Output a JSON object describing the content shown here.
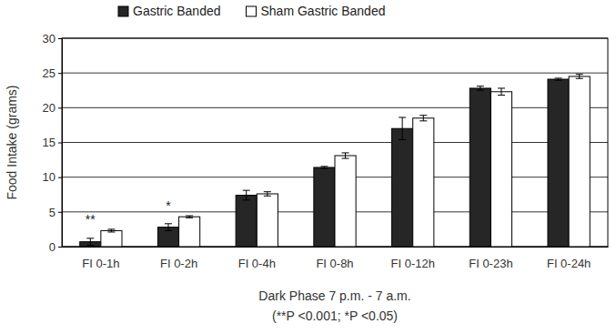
{
  "chart_data": {
    "type": "bar",
    "ylabel": "Food Intake (grams)",
    "xlabel": [
      "Dark Phase 7 p.m. - 7 a.m.",
      "(**P <0.001; *P <0.05)"
    ],
    "categories": [
      "FI 0-1h",
      "FI 0-2h",
      "FI 0-4h",
      "FI 0-8h",
      "FI 0-12h",
      "FI 0-23h",
      "FI 0-24h"
    ],
    "series": [
      {
        "name": "Gastric Banded",
        "color": "#262626",
        "values": [
          0.7,
          2.8,
          7.4,
          11.4,
          17.0,
          22.8,
          24.1
        ],
        "errors": [
          0.5,
          0.5,
          0.7,
          0.15,
          1.6,
          0.3,
          0.15
        ]
      },
      {
        "name": "Sham Gastric Banded",
        "color": "#ffffff",
        "values": [
          2.3,
          4.3,
          7.6,
          13.1,
          18.5,
          22.3,
          24.5
        ],
        "errors": [
          0.2,
          0.15,
          0.3,
          0.4,
          0.4,
          0.5,
          0.3
        ]
      }
    ],
    "annotations": [
      {
        "text": "**",
        "category": 0
      },
      {
        "text": "*",
        "category": 1
      }
    ],
    "ylim": [
      0,
      30
    ],
    "yticks": [
      0,
      5,
      10,
      15,
      20,
      25,
      30
    ],
    "grid": true,
    "legend": "top"
  }
}
